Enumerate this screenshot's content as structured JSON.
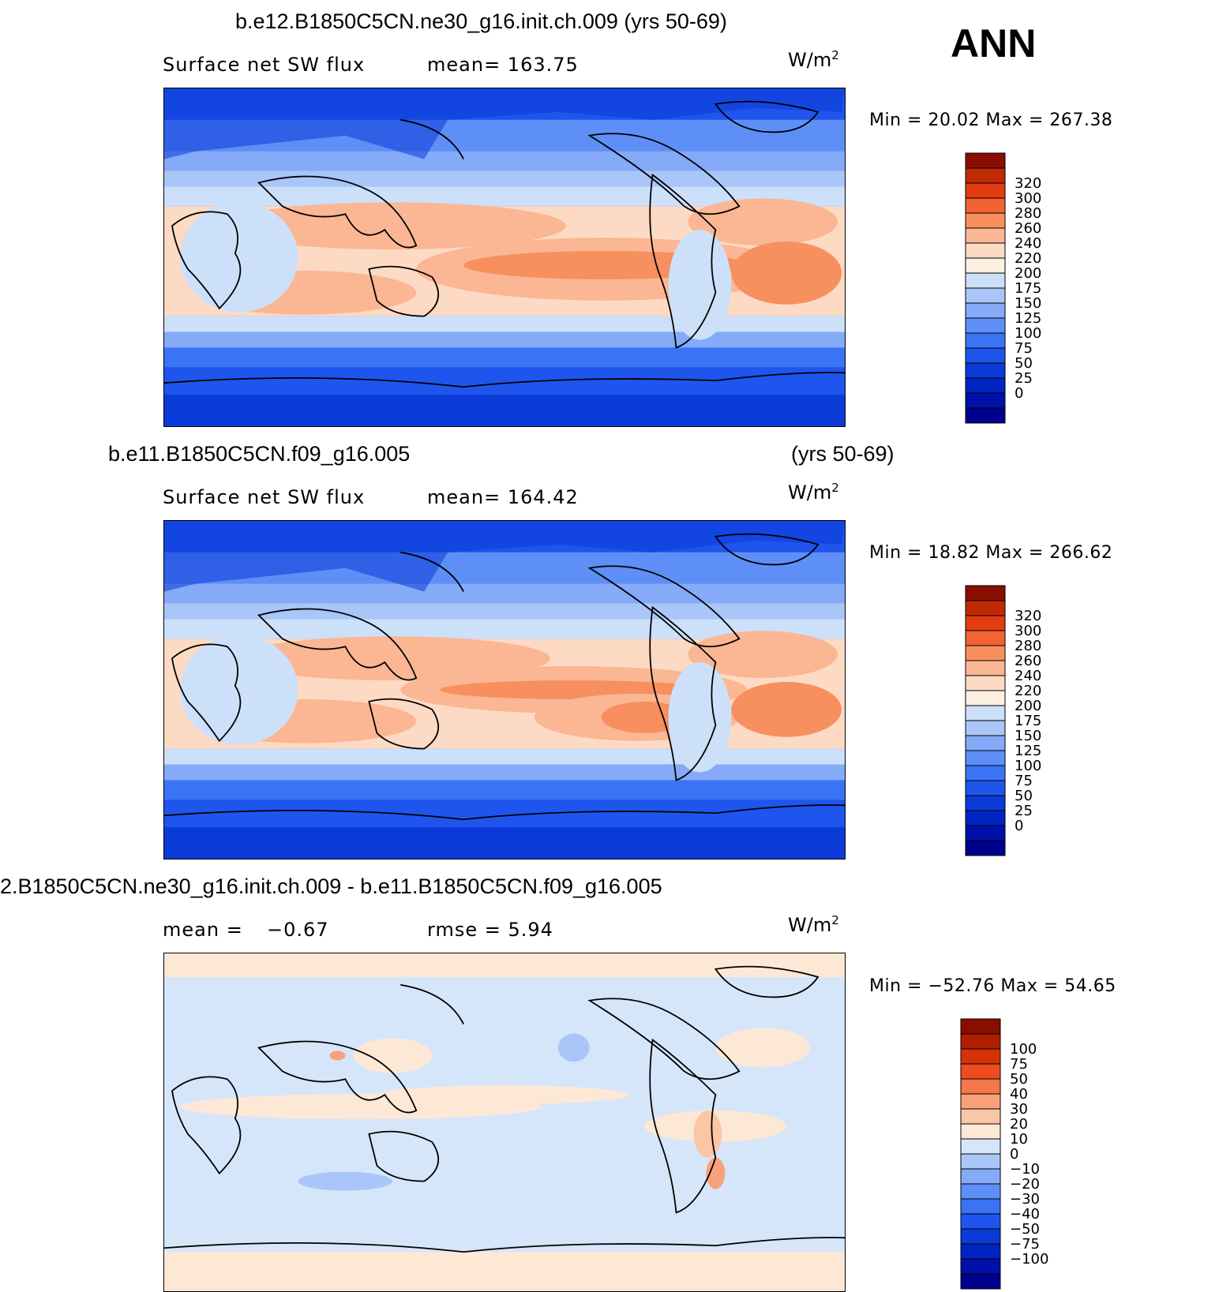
{
  "header": {
    "season": "ANN"
  },
  "panels": [
    {
      "title": "b.e12.B1850C5CN.ne30_g16.init.ch.009 (yrs 50-69)",
      "variable": "Surface net SW flux",
      "stat_left": "mean=  163.75",
      "stat_right": "",
      "units": "W/m",
      "units_sup": "2",
      "minmax": "Min =   20.02 Max = 267.38",
      "colorbar": {
        "colors": [
          "#00008f",
          "#0010a8",
          "#0024c2",
          "#0a3ad8",
          "#1f55ec",
          "#3b73f5",
          "#5e8ff7",
          "#85aaf8",
          "#aac6f8",
          "#cde0f9",
          "#fdf0e2",
          "#fddac4",
          "#fbb694",
          "#f78f5e",
          "#f36232",
          "#e23d12",
          "#bf2a04",
          "#8a0e00"
        ],
        "labels": [
          "320",
          "300",
          "280",
          "260",
          "240",
          "220",
          "200",
          "175",
          "150",
          "125",
          "100",
          "75",
          "50",
          "25",
          "0"
        ]
      }
    },
    {
      "title": "b.e11.B1850C5CN.f09_g16.005",
      "title_right": "(yrs 50-69)",
      "variable": "Surface net SW flux",
      "stat_left": "mean=  164.42",
      "stat_right": "",
      "units": "W/m",
      "units_sup": "2",
      "minmax": "Min =   18.82 Max = 266.62",
      "colorbar": {
        "colors": [
          "#00008f",
          "#0010a8",
          "#0024c2",
          "#0a3ad8",
          "#1f55ec",
          "#3b73f5",
          "#5e8ff7",
          "#85aaf8",
          "#aac6f8",
          "#cde0f9",
          "#fdf0e2",
          "#fddac4",
          "#fbb694",
          "#f78f5e",
          "#f36232",
          "#e23d12",
          "#bf2a04",
          "#8a0e00"
        ],
        "labels": [
          "320",
          "300",
          "280",
          "260",
          "240",
          "220",
          "200",
          "175",
          "150",
          "125",
          "100",
          "75",
          "50",
          "25",
          "0"
        ]
      }
    },
    {
      "title": "2.B1850C5CN.ne30_g16.init.ch.009 - b.e11.B1850C5CN.f09_g16.005",
      "variable": "mean =",
      "stat_left": "−0.67",
      "stat_right": "rmse =     5.94",
      "units": "W/m",
      "units_sup": "2",
      "minmax": "Min = −52.76 Max =   54.65",
      "colorbar": {
        "colors": [
          "#00008f",
          "#0010a8",
          "#0024c2",
          "#0a3ad8",
          "#1f55ec",
          "#3b73f5",
          "#5e8ff7",
          "#85aaf8",
          "#aac6f8",
          "#d6e6fa",
          "#fde8d6",
          "#fbc6a6",
          "#f9a17a",
          "#f5784a",
          "#ee4c20",
          "#d63208",
          "#b01e02",
          "#8a0e00"
        ],
        "labels": [
          "100",
          "75",
          "50",
          "40",
          "30",
          "20",
          "10",
          "0",
          "−10",
          "−20",
          "−30",
          "−40",
          "−50",
          "−75",
          "−100"
        ]
      }
    }
  ]
}
